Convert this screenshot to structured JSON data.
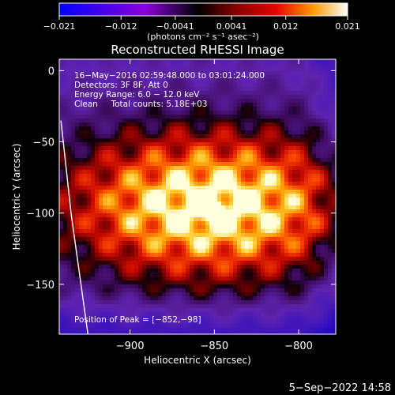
{
  "chart_data": {
    "type": "heatmap",
    "title": "Reconstructed RHESSI Image",
    "xlabel": "Heliocentric X (arcsec)",
    "ylabel": "Heliocentric Y (arcsec)",
    "xlim": [
      -942,
      -778
    ],
    "ylim": [
      -185,
      8
    ],
    "xticks": [
      -900,
      -850,
      -800
    ],
    "xtick_labels": [
      "−900",
      "−850",
      "−800"
    ],
    "yticks": [
      0,
      -50,
      -100,
      -150
    ],
    "ytick_labels": [
      "0",
      "−50",
      "−100",
      "−150"
    ],
    "colorbar": {
      "range": [
        -0.021,
        0.021
      ],
      "ticks": [
        -0.021,
        -0.012,
        -0.0041,
        0.0041,
        0.012,
        0.021
      ],
      "tick_labels": [
        "−0.021",
        "−0.012",
        "−0.0041",
        "0.0041",
        "0.012",
        "0.021"
      ],
      "unit_label": "(photons cm⁻² s⁻¹ asec⁻²)"
    },
    "annotations": [
      "16−May−2016 02:59:48.000 to 03:01:24.000",
      "Detectors: 3F 8F, Att 0",
      "Energy Range: 6.0 − 12.0 keV",
      "Clean     Total counts: 5.18E+03"
    ],
    "peak_label": "Position of Peak = [−852,−98]",
    "peak": {
      "x": -852,
      "y": -98
    },
    "limb_points": [
      [
        -941,
        -35
      ],
      [
        -935,
        -100
      ],
      [
        -925,
        -185
      ]
    ],
    "footer": "5−Sep−2022 14:58"
  }
}
